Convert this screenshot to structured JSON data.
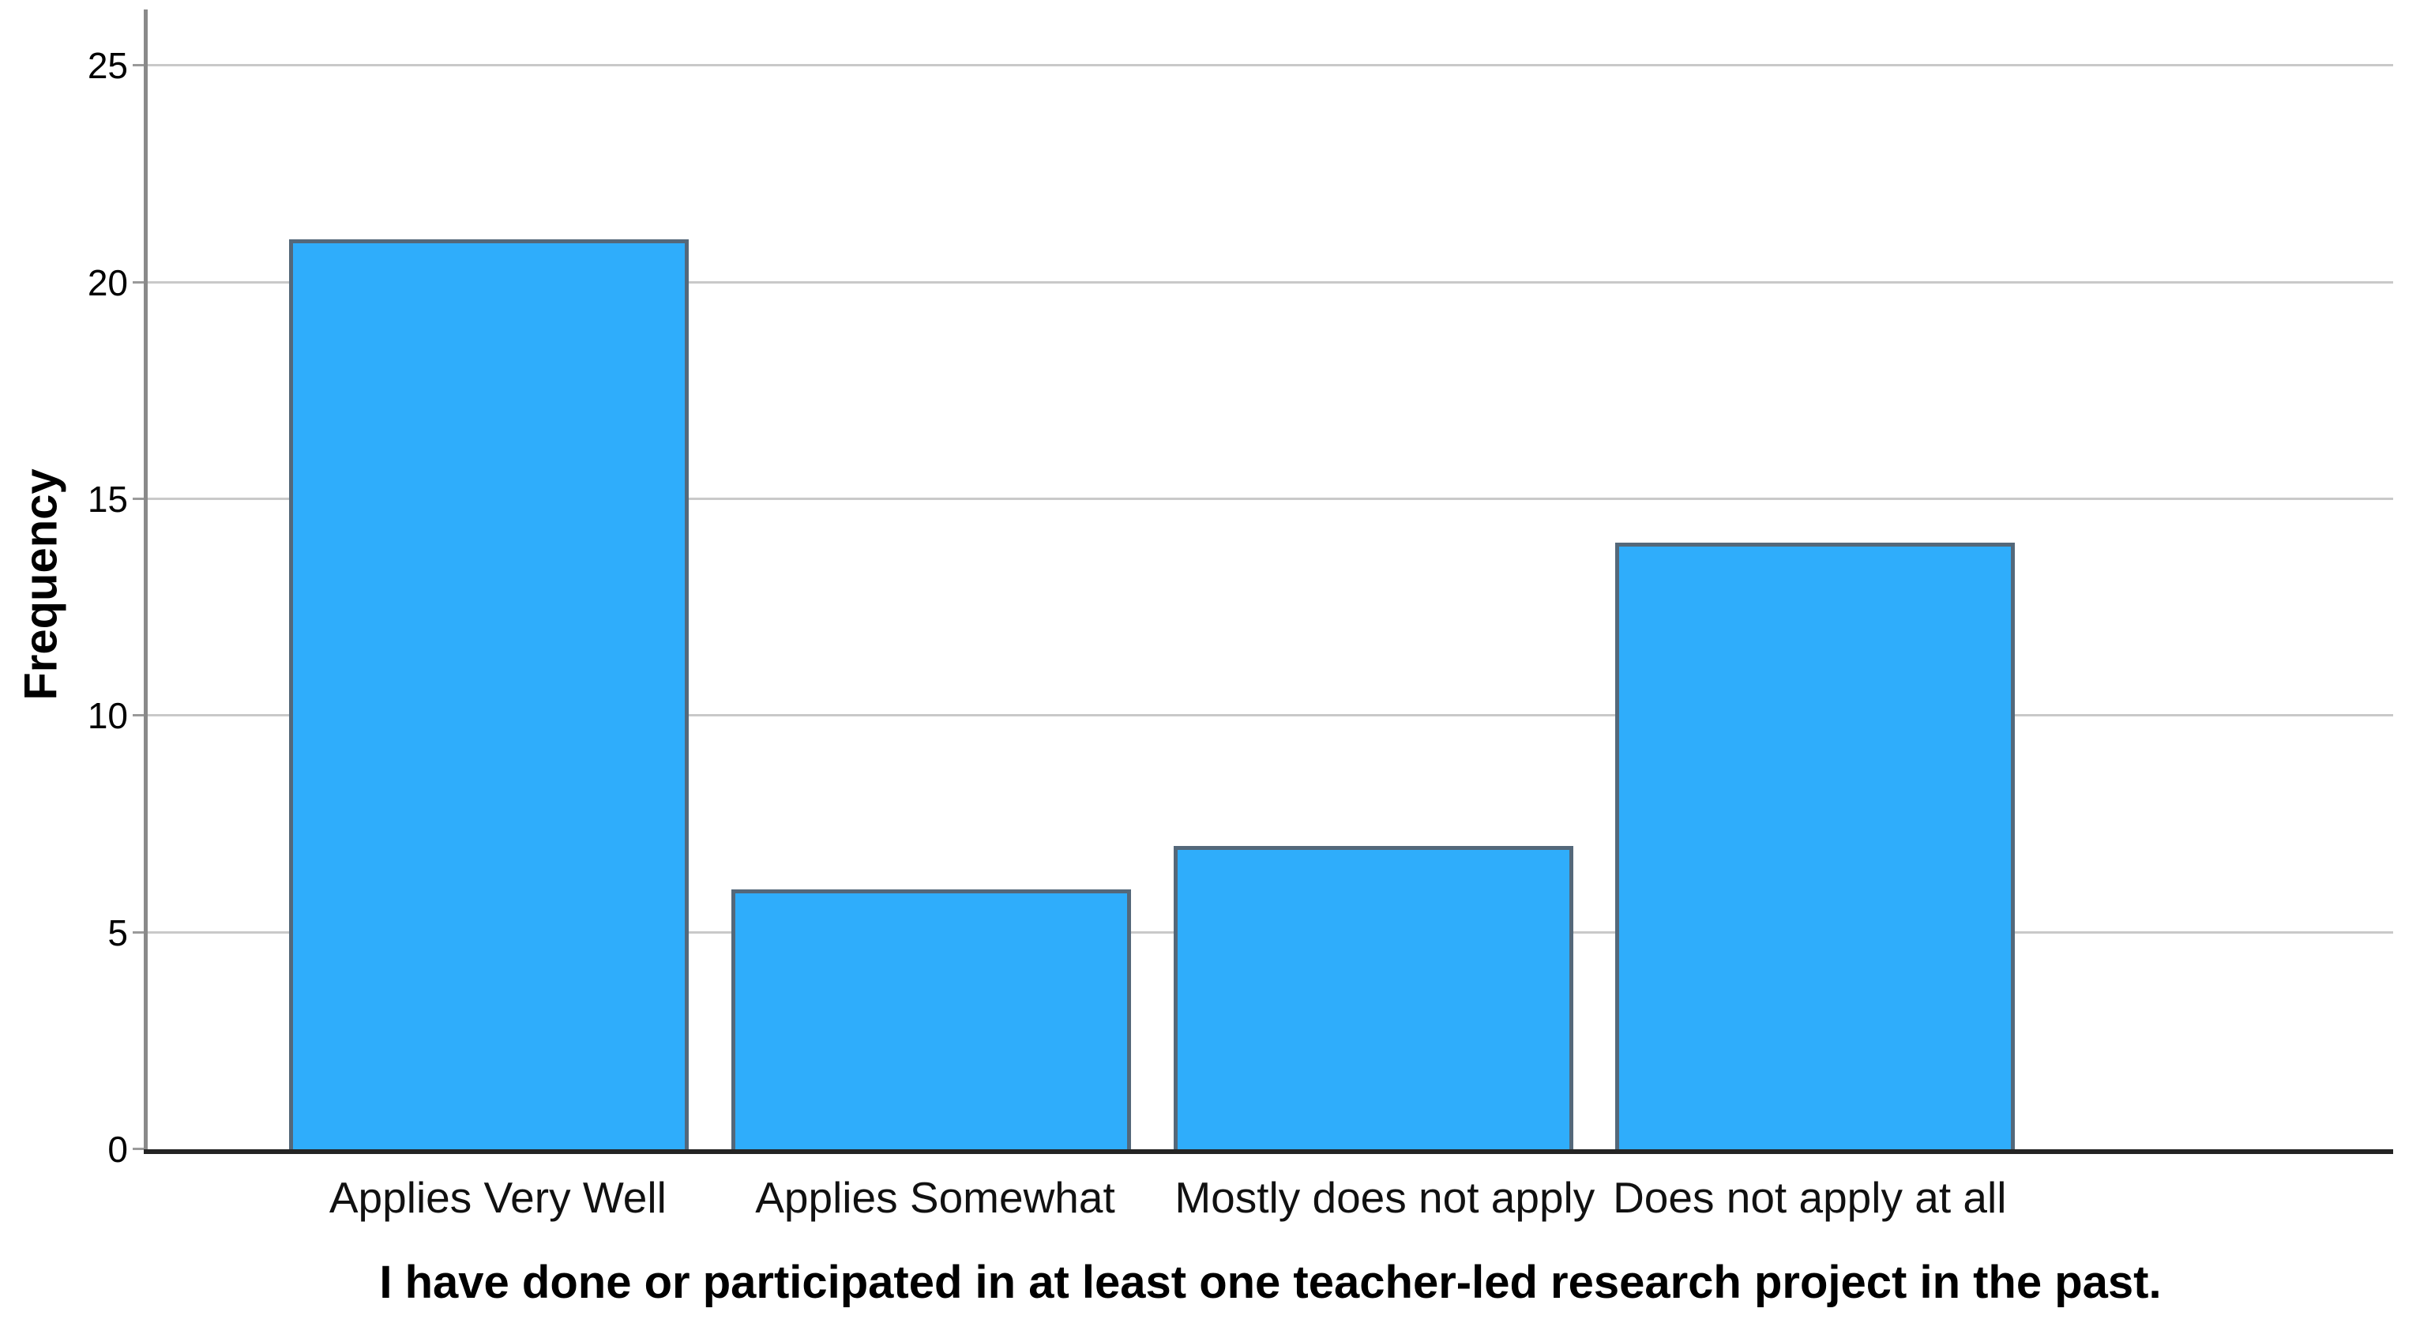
{
  "chart_data": {
    "type": "bar",
    "categories": [
      "Applies Very Well",
      "Applies Somewhat",
      "Mostly does not apply",
      "Does not apply at all"
    ],
    "values": [
      21,
      6,
      7,
      14
    ],
    "title": "",
    "xlabel": "I have done or participated in at least one teacher-led research project in the past.",
    "ylabel": "Frequency",
    "ylim": [
      0,
      26.3
    ],
    "yticks": [
      0,
      5,
      10,
      15,
      20,
      25
    ],
    "grid": true,
    "legend": "none",
    "colors": {
      "bar_fill": "#2fadfb",
      "bar_border": "#54687a",
      "gridline": "#c9c9c9",
      "y_axis_line": "#8a8a8a",
      "x_axis_line": "#242424",
      "text": "#000000",
      "background": "#ffffff"
    }
  }
}
